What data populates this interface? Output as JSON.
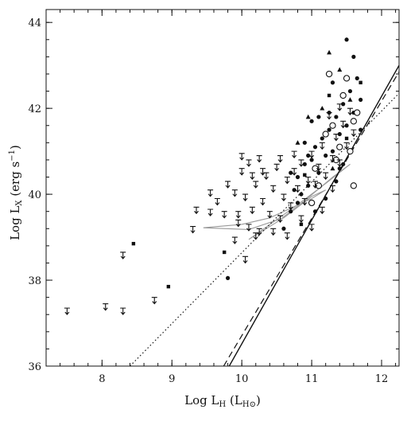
{
  "chart_data": {
    "type": "scatter",
    "xlabel": "Log L_H (L_H⊙)",
    "ylabel": "Log L_X (erg s^-1)",
    "xlim": [
      7.2,
      12.25
    ],
    "ylim": [
      36,
      44.3
    ],
    "x_ticks": [
      8,
      9,
      10,
      11,
      12
    ],
    "y_ticks": [
      36,
      38,
      40,
      42,
      44
    ],
    "grid": false,
    "legend": "none",
    "series": [
      {
        "marker": "filled-circle",
        "points": [
          [
            9.8,
            38.05
          ],
          [
            10.6,
            39.2
          ],
          [
            10.7,
            39.6
          ],
          [
            10.75,
            40.1
          ],
          [
            10.8,
            40.4
          ],
          [
            10.85,
            40.0
          ],
          [
            10.9,
            40.7
          ],
          [
            10.95,
            40.2
          ],
          [
            11.0,
            40.8
          ],
          [
            11.05,
            41.1
          ],
          [
            11.1,
            40.5
          ],
          [
            11.15,
            41.3
          ],
          [
            11.2,
            40.9
          ],
          [
            11.25,
            41.5
          ],
          [
            11.3,
            41.0
          ],
          [
            11.35,
            41.8
          ],
          [
            11.4,
            41.4
          ],
          [
            11.45,
            42.1
          ],
          [
            11.5,
            41.6
          ],
          [
            11.55,
            42.4
          ],
          [
            11.6,
            41.9
          ],
          [
            11.65,
            42.7
          ],
          [
            11.5,
            43.6
          ],
          [
            11.6,
            43.2
          ],
          [
            11.7,
            42.2
          ],
          [
            11.3,
            42.6
          ],
          [
            11.1,
            41.8
          ],
          [
            10.95,
            40.9
          ],
          [
            11.05,
            39.6
          ],
          [
            11.2,
            39.9
          ],
          [
            11.4,
            40.6
          ],
          [
            10.9,
            41.2
          ],
          [
            11.0,
            41.7
          ],
          [
            10.8,
            39.8
          ],
          [
            11.25,
            41.9
          ],
          [
            11.45,
            40.7
          ],
          [
            11.7,
            41.5
          ],
          [
            11.35,
            40.3
          ],
          [
            10.7,
            40.5
          ]
        ]
      },
      {
        "marker": "open-circle",
        "points": [
          [
            11.25,
            42.8
          ],
          [
            11.45,
            42.3
          ],
          [
            11.6,
            41.7
          ],
          [
            11.55,
            41.0
          ],
          [
            11.35,
            40.8
          ],
          [
            11.1,
            40.2
          ],
          [
            11.0,
            39.8
          ],
          [
            11.2,
            41.4
          ],
          [
            11.4,
            41.1
          ],
          [
            11.6,
            40.2
          ],
          [
            11.5,
            42.7
          ],
          [
            11.65,
            41.9
          ],
          [
            11.05,
            40.6
          ],
          [
            11.3,
            41.6
          ]
        ]
      },
      {
        "marker": "square",
        "points": [
          [
            8.45,
            38.85
          ],
          [
            8.95,
            37.85
          ],
          [
            9.75,
            38.65
          ],
          [
            11.7,
            42.6
          ],
          [
            11.25,
            42.3
          ],
          [
            10.9,
            40.45
          ],
          [
            11.5,
            41.3
          ],
          [
            10.85,
            39.3
          ]
        ]
      },
      {
        "marker": "triangle",
        "points": [
          [
            11.25,
            43.3
          ],
          [
            10.95,
            41.8
          ],
          [
            11.15,
            42.0
          ],
          [
            11.4,
            42.9
          ],
          [
            10.8,
            41.2
          ],
          [
            11.3,
            40.6
          ],
          [
            11.55,
            42.2
          ]
        ]
      },
      {
        "marker": "upper-limit",
        "points": [
          [
            7.5,
            37.35
          ],
          [
            8.05,
            37.45
          ],
          [
            8.3,
            37.35
          ],
          [
            8.3,
            38.65
          ],
          [
            8.75,
            37.6
          ],
          [
            9.3,
            39.25
          ],
          [
            9.35,
            39.7
          ],
          [
            9.55,
            39.65
          ],
          [
            9.65,
            39.9
          ],
          [
            9.75,
            39.6
          ],
          [
            9.8,
            40.3
          ],
          [
            9.9,
            40.1
          ],
          [
            9.95,
            39.4
          ],
          [
            10.0,
            40.6
          ],
          [
            10.05,
            40.0
          ],
          [
            10.1,
            40.8
          ],
          [
            10.15,
            39.7
          ],
          [
            10.2,
            40.3
          ],
          [
            10.25,
            40.9
          ],
          [
            10.3,
            39.9
          ],
          [
            10.35,
            40.5
          ],
          [
            10.4,
            39.6
          ],
          [
            10.45,
            40.2
          ],
          [
            10.5,
            40.7
          ],
          [
            10.55,
            39.5
          ],
          [
            10.6,
            40.0
          ],
          [
            10.65,
            40.4
          ],
          [
            10.7,
            39.8
          ],
          [
            10.75,
            40.6
          ],
          [
            10.8,
            40.2
          ],
          [
            10.85,
            40.8
          ],
          [
            10.9,
            39.9
          ],
          [
            10.95,
            40.4
          ],
          [
            11.0,
            41.0
          ],
          [
            11.05,
            40.3
          ],
          [
            11.1,
            40.7
          ],
          [
            11.15,
            41.2
          ],
          [
            11.2,
            40.5
          ],
          [
            11.3,
            40.9
          ],
          [
            11.35,
            41.4
          ],
          [
            11.4,
            40.8
          ],
          [
            11.45,
            41.7
          ],
          [
            11.5,
            41.2
          ],
          [
            11.55,
            42.0
          ],
          [
            11.6,
            41.5
          ],
          [
            10.05,
            38.55
          ],
          [
            10.2,
            39.1
          ],
          [
            9.55,
            40.1
          ],
          [
            10.25,
            39.2
          ],
          [
            10.45,
            39.2
          ],
          [
            10.65,
            39.1
          ],
          [
            9.9,
            39.0
          ],
          [
            9.95,
            39.6
          ],
          [
            10.1,
            39.3
          ],
          [
            10.55,
            40.9
          ],
          [
            10.75,
            41.0
          ],
          [
            10.3,
            40.6
          ],
          [
            10.0,
            40.95
          ],
          [
            10.15,
            40.5
          ],
          [
            10.85,
            39.5
          ],
          [
            11.0,
            39.3
          ],
          [
            11.15,
            39.7
          ],
          [
            11.3,
            40.2
          ],
          [
            11.4,
            42.1
          ],
          [
            11.25,
            41.9
          ]
        ]
      }
    ],
    "lines": [
      {
        "style": "solid",
        "points": [
          [
            9.82,
            36
          ],
          [
            12.25,
            43.0
          ]
        ]
      },
      {
        "style": "dashed",
        "points": [
          [
            9.74,
            36
          ],
          [
            12.25,
            42.85
          ]
        ]
      },
      {
        "style": "dotted",
        "points": [
          [
            8.4,
            36
          ],
          [
            12.25,
            42.35
          ]
        ]
      }
    ],
    "contours": [
      {
        "color": "#999999",
        "points": [
          [
            9.45,
            39.22
          ],
          [
            10.1,
            39.18
          ],
          [
            10.6,
            39.45
          ],
          [
            11.0,
            39.95
          ],
          [
            11.2,
            40.1
          ],
          [
            11.0,
            39.9
          ],
          [
            10.4,
            39.45
          ],
          [
            10.0,
            39.3
          ],
          [
            9.45,
            39.22
          ]
        ]
      },
      {
        "color": "#999999",
        "points": [
          [
            10.1,
            38.95
          ],
          [
            10.5,
            39.35
          ],
          [
            10.9,
            39.85
          ],
          [
            11.3,
            40.4
          ],
          [
            11.55,
            40.7
          ],
          [
            11.2,
            40.25
          ],
          [
            10.75,
            39.7
          ],
          [
            10.1,
            38.95
          ]
        ]
      }
    ]
  }
}
